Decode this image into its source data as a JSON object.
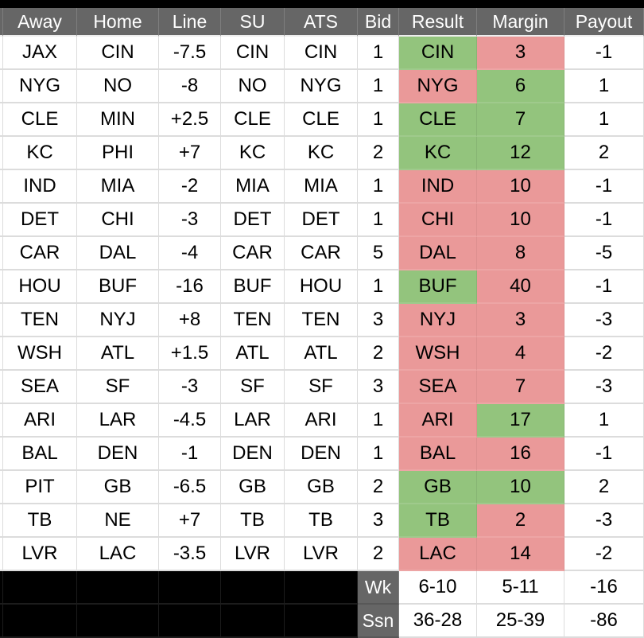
{
  "sheet": {
    "columns": [
      "Away",
      "Home",
      "Line",
      "SU",
      "ATS",
      "Bid",
      "Result",
      "Margin",
      "Payout"
    ],
    "rows": [
      {
        "away": "JAX",
        "home": "CIN",
        "line": "-7.5",
        "su": "CIN",
        "ats": "CIN",
        "bid": "1",
        "result": "CIN",
        "result_state": "win",
        "margin": "3",
        "margin_state": "loss",
        "payout": "-1"
      },
      {
        "away": "NYG",
        "home": "NO",
        "line": "-8",
        "su": "NO",
        "ats": "NYG",
        "bid": "1",
        "result": "NYG",
        "result_state": "loss",
        "margin": "6",
        "margin_state": "win",
        "payout": "1"
      },
      {
        "away": "CLE",
        "home": "MIN",
        "line": "+2.5",
        "su": "CLE",
        "ats": "CLE",
        "bid": "1",
        "result": "CLE",
        "result_state": "win",
        "margin": "7",
        "margin_state": "win",
        "payout": "1"
      },
      {
        "away": "KC",
        "home": "PHI",
        "line": "+7",
        "su": "KC",
        "ats": "KC",
        "bid": "2",
        "result": "KC",
        "result_state": "win",
        "margin": "12",
        "margin_state": "win",
        "payout": "2"
      },
      {
        "away": "IND",
        "home": "MIA",
        "line": "-2",
        "su": "MIA",
        "ats": "MIA",
        "bid": "1",
        "result": "IND",
        "result_state": "loss",
        "margin": "10",
        "margin_state": "loss",
        "payout": "-1"
      },
      {
        "away": "DET",
        "home": "CHI",
        "line": "-3",
        "su": "DET",
        "ats": "DET",
        "bid": "1",
        "result": "CHI",
        "result_state": "loss",
        "margin": "10",
        "margin_state": "loss",
        "payout": "-1"
      },
      {
        "away": "CAR",
        "home": "DAL",
        "line": "-4",
        "su": "CAR",
        "ats": "CAR",
        "bid": "5",
        "result": "DAL",
        "result_state": "loss",
        "margin": "8",
        "margin_state": "loss",
        "payout": "-5"
      },
      {
        "away": "HOU",
        "home": "BUF",
        "line": "-16",
        "su": "BUF",
        "ats": "HOU",
        "bid": "1",
        "result": "BUF",
        "result_state": "win",
        "margin": "40",
        "margin_state": "loss",
        "payout": "-1"
      },
      {
        "away": "TEN",
        "home": "NYJ",
        "line": "+8",
        "su": "TEN",
        "ats": "TEN",
        "bid": "3",
        "result": "NYJ",
        "result_state": "loss",
        "margin": "3",
        "margin_state": "loss",
        "payout": "-3"
      },
      {
        "away": "WSH",
        "home": "ATL",
        "line": "+1.5",
        "su": "ATL",
        "ats": "ATL",
        "bid": "2",
        "result": "WSH",
        "result_state": "loss",
        "margin": "4",
        "margin_state": "loss",
        "payout": "-2"
      },
      {
        "away": "SEA",
        "home": "SF",
        "line": "-3",
        "su": "SF",
        "ats": "SF",
        "bid": "3",
        "result": "SEA",
        "result_state": "loss",
        "margin": "7",
        "margin_state": "loss",
        "payout": "-3"
      },
      {
        "away": "ARI",
        "home": "LAR",
        "line": "-4.5",
        "su": "LAR",
        "ats": "ARI",
        "bid": "1",
        "result": "ARI",
        "result_state": "loss",
        "margin": "17",
        "margin_state": "win",
        "payout": "1"
      },
      {
        "away": "BAL",
        "home": "DEN",
        "line": "-1",
        "su": "DEN",
        "ats": "DEN",
        "bid": "1",
        "result": "BAL",
        "result_state": "loss",
        "margin": "16",
        "margin_state": "loss",
        "payout": "-1"
      },
      {
        "away": "PIT",
        "home": "GB",
        "line": "-6.5",
        "su": "GB",
        "ats": "GB",
        "bid": "2",
        "result": "GB",
        "result_state": "win",
        "margin": "10",
        "margin_state": "win",
        "payout": "2"
      },
      {
        "away": "TB",
        "home": "NE",
        "line": "+7",
        "su": "TB",
        "ats": "TB",
        "bid": "3",
        "result": "TB",
        "result_state": "win",
        "margin": "2",
        "margin_state": "loss",
        "payout": "-3"
      },
      {
        "away": "LVR",
        "home": "LAC",
        "line": "-3.5",
        "su": "LVR",
        "ats": "LVR",
        "bid": "2",
        "result": "LAC",
        "result_state": "loss",
        "margin": "14",
        "margin_state": "loss",
        "payout": "-2"
      }
    ],
    "footer": [
      {
        "label": "Wk",
        "result": "6-10",
        "margin": "5-11",
        "payout": "-16"
      },
      {
        "label": "Ssn",
        "result": "36-28",
        "margin": "25-39",
        "payout": "-86"
      }
    ]
  },
  "colors": {
    "win_bg": "#93c47d",
    "loss_bg": "#ea9999",
    "header_bg": "#666666",
    "header_text": "#ffffff",
    "gridline": "#dcdcdc",
    "filler_bg": "#000000"
  }
}
